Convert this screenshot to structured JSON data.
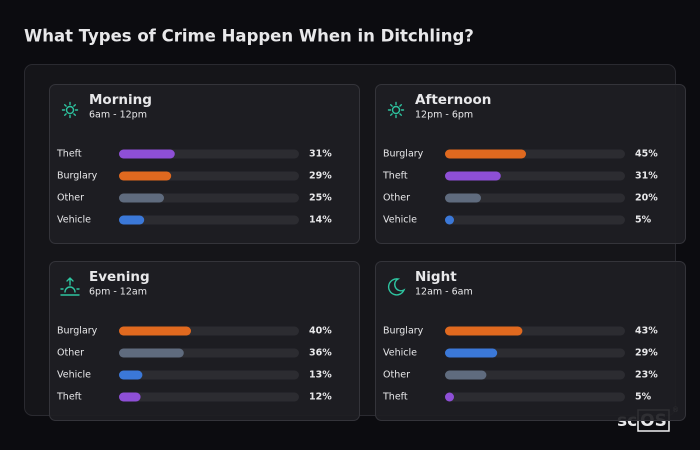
{
  "title": "What Types of Crime Happen When in Ditchling?",
  "chart_data": [
    {
      "type": "bar",
      "orientation": "horizontal",
      "title": "Morning",
      "subtitle": "6am - 12pm",
      "xlim": [
        0,
        100
      ],
      "categories": [
        "Theft",
        "Burglary",
        "Other",
        "Vehicle"
      ],
      "values": [
        31,
        29,
        25,
        14
      ],
      "value_labels": [
        "31%",
        "29%",
        "25%",
        "14%"
      ],
      "colors": [
        "#8e4fd6",
        "#e0691f",
        "#5f6b7e",
        "#3b78d8"
      ]
    },
    {
      "type": "bar",
      "orientation": "horizontal",
      "title": "Afternoon",
      "subtitle": "12pm - 6pm",
      "xlim": [
        0,
        100
      ],
      "categories": [
        "Burglary",
        "Theft",
        "Other",
        "Vehicle"
      ],
      "values": [
        45,
        31,
        20,
        5
      ],
      "value_labels": [
        "45%",
        "31%",
        "20%",
        "5%"
      ],
      "colors": [
        "#e0691f",
        "#8e4fd6",
        "#5f6b7e",
        "#3b78d8"
      ]
    },
    {
      "type": "bar",
      "orientation": "horizontal",
      "title": "Evening",
      "subtitle": "6pm - 12am",
      "xlim": [
        0,
        100
      ],
      "categories": [
        "Burglary",
        "Other",
        "Vehicle",
        "Theft"
      ],
      "values": [
        40,
        36,
        13,
        12
      ],
      "value_labels": [
        "40%",
        "36%",
        "13%",
        "12%"
      ],
      "colors": [
        "#e0691f",
        "#5f6b7e",
        "#3b78d8",
        "#8e4fd6"
      ]
    },
    {
      "type": "bar",
      "orientation": "horizontal",
      "title": "Night",
      "subtitle": "12am - 6am",
      "xlim": [
        0,
        100
      ],
      "categories": [
        "Burglary",
        "Vehicle",
        "Other",
        "Theft"
      ],
      "values": [
        43,
        29,
        23,
        5
      ],
      "value_labels": [
        "43%",
        "29%",
        "23%",
        "5%"
      ],
      "colors": [
        "#e0691f",
        "#3b78d8",
        "#5f6b7e",
        "#8e4fd6"
      ]
    }
  ],
  "watermark": [
    "sc",
    "OS"
  ]
}
